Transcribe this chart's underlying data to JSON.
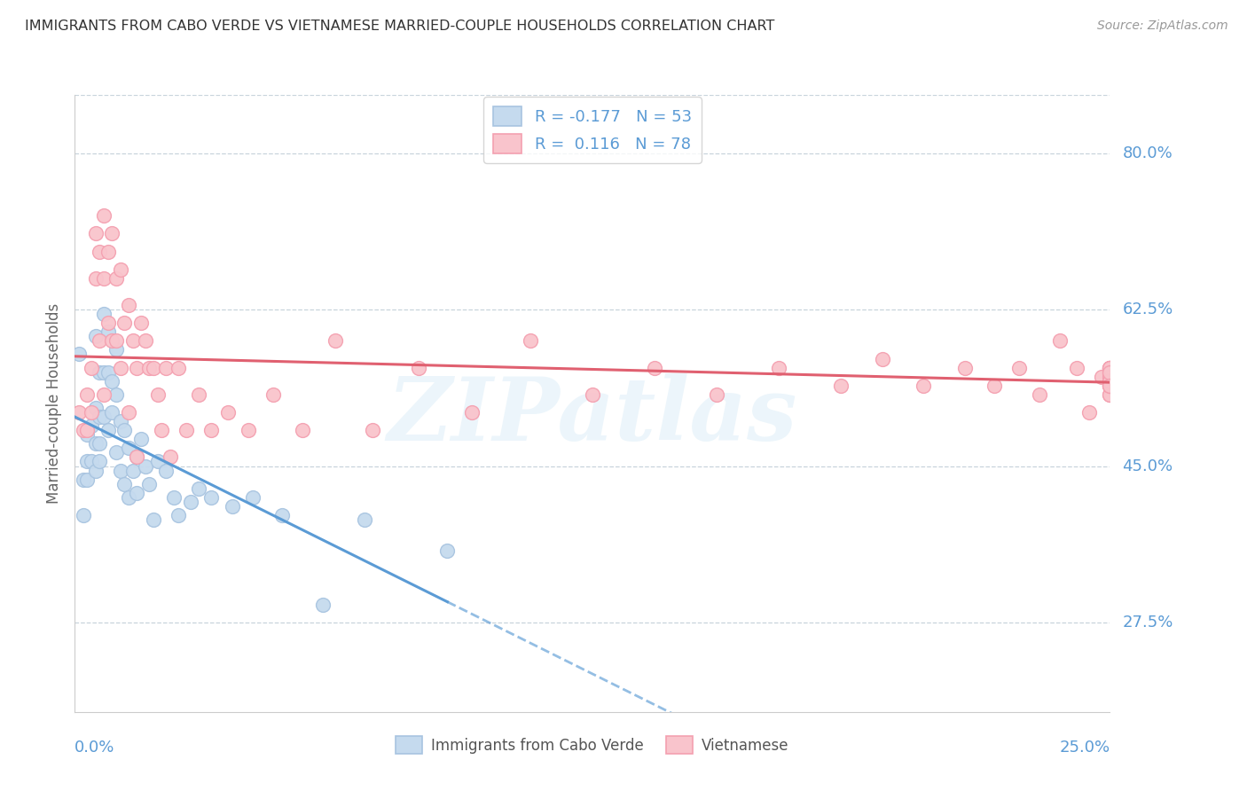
{
  "title": "IMMIGRANTS FROM CABO VERDE VS VIETNAMESE MARRIED-COUPLE HOUSEHOLDS CORRELATION CHART",
  "source": "Source: ZipAtlas.com",
  "ylabel": "Married-couple Households",
  "x_label_bottom_left": "0.0%",
  "x_label_bottom_right": "25.0%",
  "y_ticks": [
    0.275,
    0.45,
    0.625,
    0.8
  ],
  "y_tick_labels": [
    "27.5%",
    "45.0%",
    "62.5%",
    "80.0%"
  ],
  "x_min": 0.0,
  "x_max": 0.25,
  "y_min": 0.175,
  "y_max": 0.865,
  "cabo_verde_color": "#a8c4e0",
  "cabo_verde_face": "#c5daee",
  "vietnamese_color": "#f4a0b0",
  "vietnamese_face": "#f9c4cc",
  "cabo_verde_R": -0.177,
  "cabo_verde_N": 53,
  "vietnamese_R": 0.116,
  "vietnamese_N": 78,
  "legend_entry_1": "Immigrants from Cabo Verde",
  "legend_entry_2": "Vietnamese",
  "watermark": "ZIPatlas",
  "cabo_verde_line_color": "#5b9bd5",
  "vietnamese_line_color": "#e06070",
  "cabo_verde_x": [
    0.001,
    0.002,
    0.002,
    0.003,
    0.003,
    0.003,
    0.004,
    0.004,
    0.005,
    0.005,
    0.005,
    0.005,
    0.006,
    0.006,
    0.006,
    0.006,
    0.007,
    0.007,
    0.007,
    0.008,
    0.008,
    0.008,
    0.009,
    0.009,
    0.01,
    0.01,
    0.01,
    0.011,
    0.011,
    0.012,
    0.012,
    0.013,
    0.013,
    0.014,
    0.015,
    0.015,
    0.016,
    0.017,
    0.018,
    0.019,
    0.02,
    0.022,
    0.024,
    0.025,
    0.028,
    0.03,
    0.033,
    0.038,
    0.043,
    0.05,
    0.06,
    0.07,
    0.09
  ],
  "cabo_verde_y": [
    0.575,
    0.435,
    0.395,
    0.485,
    0.455,
    0.435,
    0.495,
    0.455,
    0.595,
    0.515,
    0.475,
    0.445,
    0.555,
    0.505,
    0.475,
    0.455,
    0.62,
    0.555,
    0.505,
    0.6,
    0.555,
    0.49,
    0.545,
    0.51,
    0.58,
    0.53,
    0.465,
    0.5,
    0.445,
    0.49,
    0.43,
    0.47,
    0.415,
    0.445,
    0.46,
    0.42,
    0.48,
    0.45,
    0.43,
    0.39,
    0.455,
    0.445,
    0.415,
    0.395,
    0.41,
    0.425,
    0.415,
    0.405,
    0.415,
    0.395,
    0.295,
    0.39,
    0.355
  ],
  "vietnamese_x": [
    0.001,
    0.002,
    0.003,
    0.003,
    0.004,
    0.004,
    0.005,
    0.005,
    0.006,
    0.006,
    0.007,
    0.007,
    0.007,
    0.008,
    0.008,
    0.009,
    0.009,
    0.01,
    0.01,
    0.011,
    0.011,
    0.012,
    0.013,
    0.013,
    0.014,
    0.015,
    0.015,
    0.016,
    0.017,
    0.018,
    0.019,
    0.02,
    0.021,
    0.022,
    0.023,
    0.025,
    0.027,
    0.03,
    0.033,
    0.037,
    0.042,
    0.048,
    0.055,
    0.063,
    0.072,
    0.083,
    0.096,
    0.11,
    0.125,
    0.14,
    0.155,
    0.17,
    0.185,
    0.195,
    0.205,
    0.215,
    0.222,
    0.228,
    0.233,
    0.238,
    0.242,
    0.245,
    0.248,
    0.25,
    0.25,
    0.25,
    0.25,
    0.25,
    0.25,
    0.25,
    0.25,
    0.25,
    0.25,
    0.25,
    0.25,
    0.25,
    0.25,
    0.25
  ],
  "vietnamese_y": [
    0.51,
    0.49,
    0.53,
    0.49,
    0.56,
    0.51,
    0.71,
    0.66,
    0.69,
    0.59,
    0.73,
    0.66,
    0.53,
    0.69,
    0.61,
    0.71,
    0.59,
    0.66,
    0.59,
    0.67,
    0.56,
    0.61,
    0.63,
    0.51,
    0.59,
    0.56,
    0.46,
    0.61,
    0.59,
    0.56,
    0.56,
    0.53,
    0.49,
    0.56,
    0.46,
    0.56,
    0.49,
    0.53,
    0.49,
    0.51,
    0.49,
    0.53,
    0.49,
    0.59,
    0.49,
    0.56,
    0.51,
    0.59,
    0.53,
    0.56,
    0.53,
    0.56,
    0.54,
    0.57,
    0.54,
    0.56,
    0.54,
    0.56,
    0.53,
    0.59,
    0.56,
    0.51,
    0.55,
    0.53,
    0.56,
    0.54,
    0.56,
    0.53,
    0.56,
    0.55,
    0.56,
    0.545,
    0.555,
    0.54,
    0.56,
    0.545,
    0.555,
    0.54
  ]
}
